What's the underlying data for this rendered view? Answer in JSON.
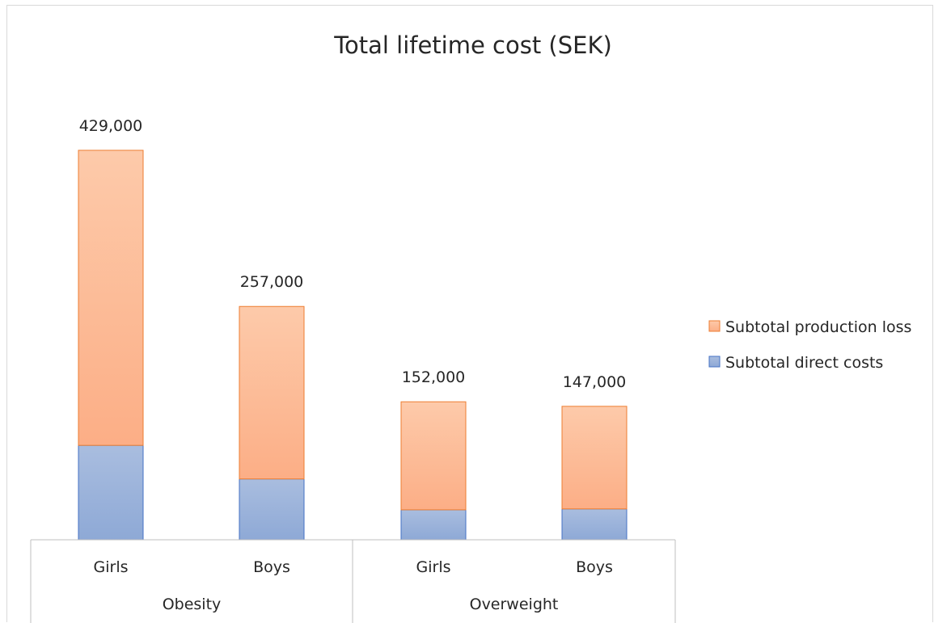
{
  "chart_data": {
    "type": "bar",
    "stacked": true,
    "title": "Total lifetime cost (SEK)",
    "groups": [
      {
        "name": "Obesity",
        "categories": [
          "Girls",
          "Boys"
        ]
      },
      {
        "name": "Overweight",
        "categories": [
          "Girls",
          "Boys"
        ]
      }
    ],
    "categories": [
      "Girls",
      "Boys",
      "Girls",
      "Boys"
    ],
    "series": [
      {
        "name": "Subtotal direct costs",
        "color_top": "#a9bddf",
        "color_bottom": "#8ea9d6",
        "stroke": "#4472c4",
        "values": [
          104000,
          67000,
          33000,
          34000
        ]
      },
      {
        "name": "Subtotal production loss",
        "color_top": "#fdcaaa",
        "color_bottom": "#fcae86",
        "stroke": "#ed7d31",
        "values": [
          325000,
          190000,
          119000,
          113000
        ]
      }
    ],
    "totals": [
      429000,
      257000,
      152000,
      147000
    ],
    "total_labels": [
      "429,000",
      "257,000",
      "152,000",
      "147,000"
    ],
    "ylim": [
      0,
      429000
    ],
    "legend_position": "right",
    "legend_order": [
      "Subtotal production loss",
      "Subtotal direct costs"
    ],
    "grid": false
  }
}
